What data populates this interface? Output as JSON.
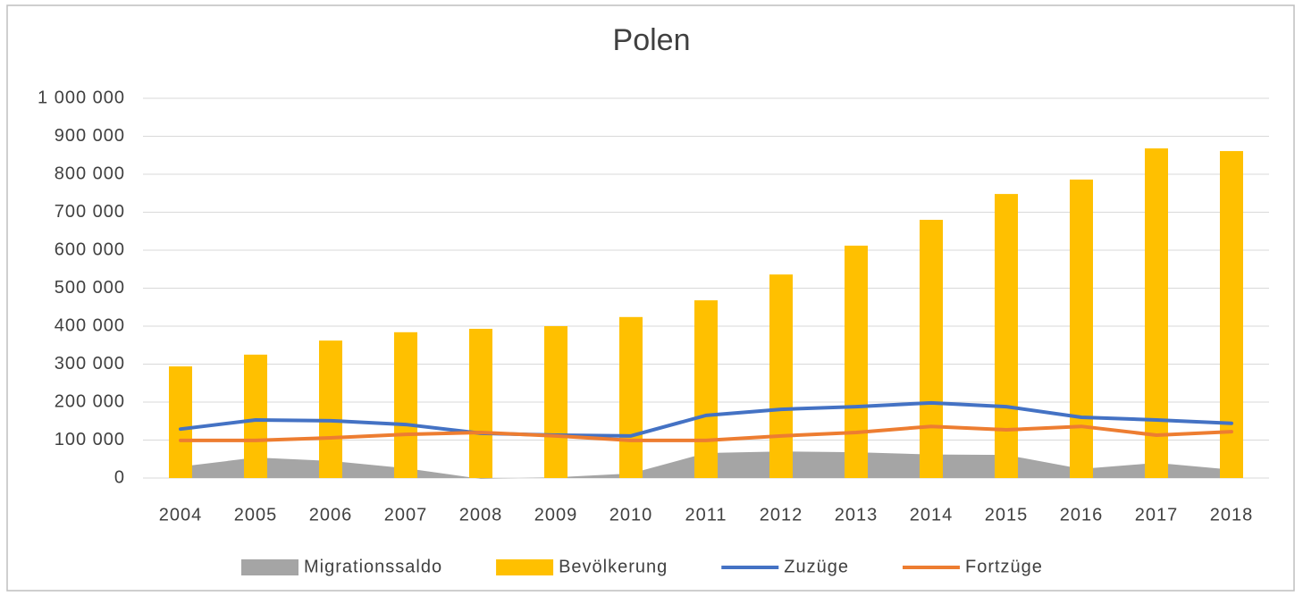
{
  "chart_data": {
    "type": "combo",
    "title": "Polen",
    "categories": [
      "2004",
      "2005",
      "2006",
      "2007",
      "2008",
      "2009",
      "2010",
      "2011",
      "2012",
      "2013",
      "2014",
      "2015",
      "2016",
      "2017",
      "2018"
    ],
    "series": [
      {
        "name": "Migrationssaldo",
        "type": "area",
        "color": "#a5a5a5",
        "values": [
          30000,
          54000,
          45000,
          26000,
          -2000,
          2000,
          12000,
          66000,
          70000,
          68000,
          62000,
          61000,
          24000,
          40000,
          22000
        ]
      },
      {
        "name": "Bevölkerung",
        "type": "bar",
        "color": "#ffc000",
        "values": [
          294000,
          325000,
          362000,
          384000,
          393000,
          400000,
          424000,
          468000,
          536000,
          612000,
          680000,
          748000,
          786000,
          868000,
          861000
        ]
      },
      {
        "name": "Zuzüge",
        "type": "line",
        "color": "#4472c4",
        "values": [
          129000,
          153000,
          151000,
          141000,
          118000,
          113000,
          111000,
          165000,
          181000,
          188000,
          198000,
          188000,
          160000,
          153000,
          144000
        ]
      },
      {
        "name": "Fortzüge",
        "type": "line",
        "color": "#ed7d31",
        "values": [
          99000,
          99000,
          106000,
          115000,
          120000,
          111000,
          99000,
          99000,
          111000,
          120000,
          136000,
          127000,
          136000,
          113000,
          122000
        ]
      }
    ],
    "ylim": [
      0,
      1000000
    ],
    "yticks": [
      0,
      {
        "value": 100000,
        "label": "100 000"
      },
      {
        "value": 200000,
        "label": "200 000"
      },
      {
        "value": 300000,
        "label": "300 000"
      },
      {
        "value": 400000,
        "label": "400 000"
      },
      {
        "value": 500000,
        "label": "500 000"
      },
      {
        "value": 600000,
        "label": "600 000"
      },
      {
        "value": 700000,
        "label": "700 000"
      },
      {
        "value": 800000,
        "label": "800 000"
      },
      {
        "value": 900000,
        "label": "900 000"
      },
      {
        "value": 1000000,
        "label": "1 000 000"
      }
    ],
    "grid": true,
    "legend": "bottom"
  }
}
